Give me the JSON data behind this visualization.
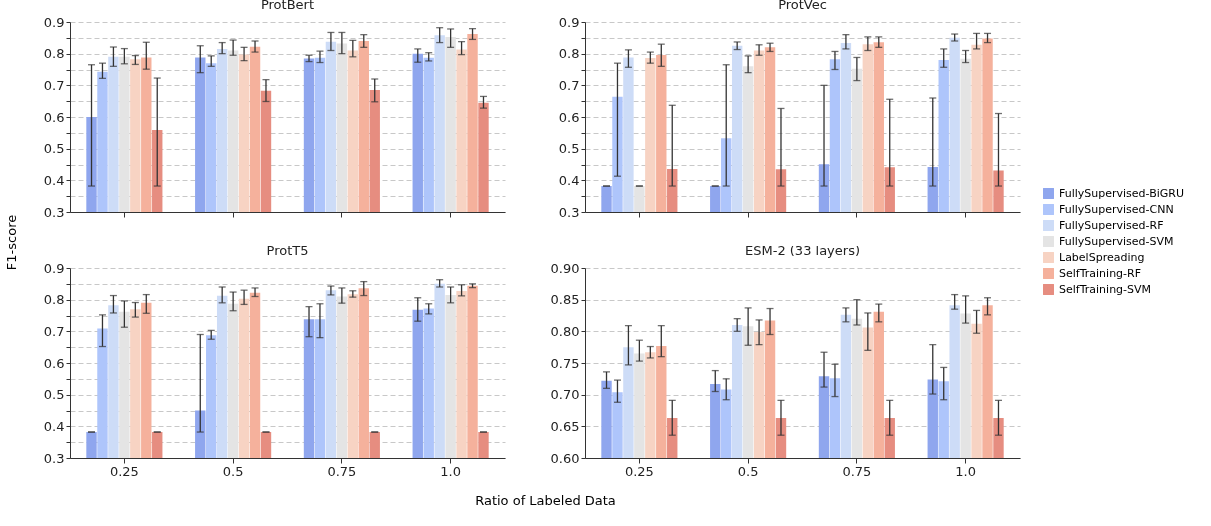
{
  "chart_data": [
    {
      "type": "bar",
      "title": "ProtBert",
      "ylabel": "F1-score",
      "categories": [
        "0.25",
        "0.5",
        "0.75",
        "1.0"
      ],
      "ylim": [
        0.3,
        0.9
      ],
      "yticks": [
        0.3,
        {
          "value": 0.35,
          "label": null
        },
        0.4,
        {
          "value": 0.45,
          "label": null
        },
        0.5,
        {
          "value": 0.55,
          "label": null
        },
        0.6,
        {
          "value": 0.65,
          "label": null
        },
        0.7,
        {
          "value": 0.75,
          "label": null
        },
        0.8,
        {
          "value": 0.85,
          "label": null
        },
        0.9
      ],
      "grid": "y",
      "tick_labels": "y",
      "series": [
        {
          "color": "#8fa6ee",
          "values": [
            0.6,
            0.788,
            0.785,
            0.8
          ],
          "errors": [
            [
              0.382,
              0.765
            ],
            [
              0.74,
              0.825
            ],
            [
              0.775,
              0.795
            ],
            [
              0.773,
              0.815
            ]
          ]
        },
        {
          "color": "#aec5fb",
          "values": [
            0.743,
            0.77,
            0.787,
            0.787
          ],
          "errors": [
            [
              0.722,
              0.77
            ],
            [
              0.76,
              0.793
            ],
            [
              0.772,
              0.808
            ],
            [
              0.777,
              0.803
            ]
          ]
        },
        {
          "color": "#cddcf7",
          "values": [
            0.79,
            0.815,
            0.838,
            0.858
          ],
          "errors": [
            [
              0.76,
              0.821
            ],
            [
              0.8,
              0.835
            ],
            [
              0.81,
              0.867
            ],
            [
              0.835,
              0.882
            ]
          ]
        },
        {
          "color": "#e4e4e4",
          "values": [
            0.79,
            0.81,
            0.832,
            0.853
          ],
          "errors": [
            [
              0.768,
              0.816
            ],
            [
              0.795,
              0.843
            ],
            [
              0.8,
              0.867
            ],
            [
              0.82,
              0.878
            ]
          ]
        },
        {
          "color": "#f7d3c3",
          "values": [
            0.782,
            0.797,
            0.81,
            0.813
          ],
          "errors": [
            [
              0.766,
              0.794
            ],
            [
              0.778,
              0.82
            ],
            [
              0.79,
              0.842
            ],
            [
              0.797,
              0.838
            ]
          ]
        },
        {
          "color": "#f5b19c",
          "values": [
            0.788,
            0.822,
            0.84,
            0.862
          ],
          "errors": [
            [
              0.751,
              0.836
            ],
            [
              0.805,
              0.84
            ],
            [
              0.82,
              0.86
            ],
            [
              0.845,
              0.879
            ]
          ]
        },
        {
          "color": "#e68d80",
          "values": [
            0.559,
            0.683,
            0.685,
            0.645
          ],
          "errors": [
            [
              0.382,
              0.723
            ],
            [
              0.649,
              0.718
            ],
            [
              0.648,
              0.72
            ],
            [
              0.628,
              0.665
            ]
          ]
        }
      ]
    },
    {
      "type": "bar",
      "title": "ProtVec",
      "categories": [
        "0.25",
        "0.5",
        "0.75",
        "1.0"
      ],
      "ylim": [
        0.3,
        0.9
      ],
      "yticks": [
        0.3,
        {
          "value": 0.35,
          "label": null
        },
        0.4,
        {
          "value": 0.45,
          "label": null
        },
        0.5,
        {
          "value": 0.55,
          "label": null
        },
        0.6,
        {
          "value": 0.65,
          "label": null
        },
        0.7,
        {
          "value": 0.75,
          "label": null
        },
        0.8,
        {
          "value": 0.85,
          "label": null
        },
        0.9
      ],
      "grid": "y",
      "legend": "right",
      "tick_labels": "y",
      "series": [
        {
          "name": "FullySupervised-BiGRU",
          "color": "#8fa6ee",
          "values": [
            0.382,
            0.382,
            0.451,
            0.442
          ],
          "errors": [
            [
              0.382,
              0.382
            ],
            [
              0.382,
              0.382
            ],
            [
              0.382,
              0.7
            ],
            [
              0.382,
              0.66
            ]
          ]
        },
        {
          "name": "FullySupervised-CNN",
          "color": "#aec5fb",
          "values": [
            0.664,
            0.533,
            0.782,
            0.78
          ],
          "errors": [
            [
              0.413,
              0.77
            ],
            [
              0.382,
              0.765
            ],
            [
              0.75,
              0.807
            ],
            [
              0.757,
              0.815
            ]
          ]
        },
        {
          "name": "FullySupervised-RF",
          "color": "#cddcf7",
          "values": [
            0.788,
            0.825,
            0.834,
            0.85
          ],
          "errors": [
            [
              0.757,
              0.812
            ],
            [
              0.813,
              0.837
            ],
            [
              0.815,
              0.86
            ],
            [
              0.84,
              0.862
            ]
          ]
        },
        {
          "name": "FullySupervised-SVM",
          "color": "#e4e4e4",
          "values": [
            0.382,
            0.76,
            0.752,
            0.784
          ],
          "errors": [
            [
              0.382,
              0.382
            ],
            [
              0.74,
              0.793
            ],
            [
              0.715,
              0.788
            ],
            [
              0.772,
              0.81
            ]
          ]
        },
        {
          "name": "LabelSpreading",
          "color": "#f7d3c3",
          "values": [
            0.786,
            0.81,
            0.83,
            0.828
          ],
          "errors": [
            [
              0.77,
              0.805
            ],
            [
              0.795,
              0.828
            ],
            [
              0.81,
              0.853
            ],
            [
              0.815,
              0.864
            ]
          ]
        },
        {
          "name": "SelfTraining-RF",
          "color": "#f5b19c",
          "values": [
            0.796,
            0.82,
            0.836,
            0.848
          ],
          "errors": [
            [
              0.76,
              0.83
            ],
            [
              0.807,
              0.833
            ],
            [
              0.82,
              0.853
            ],
            [
              0.835,
              0.864
            ]
          ]
        },
        {
          "name": "SelfTraining-SVM",
          "color": "#e68d80",
          "values": [
            0.436,
            0.435,
            0.441,
            0.431
          ],
          "errors": [
            [
              0.382,
              0.637
            ],
            [
              0.382,
              0.627
            ],
            [
              0.382,
              0.656
            ],
            [
              0.382,
              0.611
            ]
          ]
        }
      ]
    },
    {
      "type": "bar",
      "title": "ProtT5",
      "xlabel": "Ratio of Labeled Data",
      "categories": [
        "0.25",
        "0.5",
        "0.75",
        "1.0"
      ],
      "ylim": [
        0.3,
        0.9
      ],
      "yticks": [
        0.3,
        {
          "value": 0.35,
          "label": null
        },
        0.4,
        {
          "value": 0.45,
          "label": null
        },
        0.5,
        {
          "value": 0.55,
          "label": null
        },
        0.6,
        {
          "value": 0.65,
          "label": null
        },
        0.7,
        {
          "value": 0.75,
          "label": null
        },
        0.8,
        {
          "value": 0.85,
          "label": null
        },
        0.9
      ],
      "grid": "y",
      "series": [
        {
          "color": "#8fa6ee",
          "values": [
            0.382,
            0.45,
            0.738,
            0.768
          ],
          "errors": [
            [
              0.382,
              0.382
            ],
            [
              0.382,
              0.69
            ],
            [
              0.683,
              0.778
            ],
            [
              0.732,
              0.806
            ]
          ]
        },
        {
          "color": "#aec5fb",
          "values": [
            0.709,
            0.688,
            0.738,
            0.772
          ],
          "errors": [
            [
              0.652,
              0.752
            ],
            [
              0.675,
              0.703
            ],
            [
              0.68,
              0.787
            ],
            [
              0.755,
              0.787
            ]
          ]
        },
        {
          "color": "#cddcf7",
          "values": [
            0.782,
            0.812,
            0.83,
            0.85
          ],
          "errors": [
            [
              0.758,
              0.813
            ],
            [
              0.79,
              0.84
            ],
            [
              0.815,
              0.843
            ],
            [
              0.84,
              0.863
            ]
          ]
        },
        {
          "color": "#e4e4e4",
          "values": [
            0.762,
            0.787,
            0.81,
            0.815
          ],
          "errors": [
            [
              0.713,
              0.796
            ],
            [
              0.765,
              0.824
            ],
            [
              0.789,
              0.837
            ],
            [
              0.79,
              0.84
            ]
          ]
        },
        {
          "color": "#f7d3c3",
          "values": [
            0.77,
            0.803,
            0.817,
            0.827
          ],
          "errors": [
            [
              0.745,
              0.791
            ],
            [
              0.785,
              0.83
            ],
            [
              0.808,
              0.828
            ],
            [
              0.812,
              0.847
            ]
          ]
        },
        {
          "color": "#f5b19c",
          "values": [
            0.79,
            0.822,
            0.836,
            0.844
          ],
          "errors": [
            [
              0.757,
              0.816
            ],
            [
              0.81,
              0.837
            ],
            [
              0.813,
              0.857
            ],
            [
              0.838,
              0.85
            ]
          ]
        },
        {
          "color": "#e68d80",
          "values": [
            0.382,
            0.382,
            0.382,
            0.382
          ],
          "errors": [
            [
              0.382,
              0.382
            ],
            [
              0.382,
              0.382
            ],
            [
              0.382,
              0.382
            ],
            [
              0.382,
              0.382
            ]
          ]
        }
      ]
    },
    {
      "type": "bar",
      "title": "ESM-2 (33 layers)",
      "categories": [
        "0.25",
        "0.5",
        "0.75",
        "1.0"
      ],
      "ylim": [
        0.6,
        0.9
      ],
      "yticks": [
        {
          "value": 0.6,
          "label": "0.60"
        },
        0.65,
        {
          "value": 0.7,
          "label": "0.70"
        },
        0.75,
        {
          "value": 0.8,
          "label": "0.80"
        },
        0.85,
        {
          "value": 0.9,
          "label": "0.90"
        }
      ],
      "grid": "y",
      "series": [
        {
          "color": "#8fa6ee",
          "values": [
            0.722,
            0.717,
            0.729,
            0.724
          ],
          "errors": [
            [
              0.71,
              0.736
            ],
            [
              0.705,
              0.738
            ],
            [
              0.712,
              0.767
            ],
            [
              0.701,
              0.779
            ]
          ]
        },
        {
          "color": "#aec5fb",
          "values": [
            0.704,
            0.708,
            0.726,
            0.721
          ],
          "errors": [
            [
              0.688,
              0.723
            ],
            [
              0.692,
              0.725
            ],
            [
              0.697,
              0.748
            ],
            [
              0.692,
              0.743
            ]
          ]
        },
        {
          "color": "#cddcf7",
          "values": [
            0.775,
            0.81,
            0.826,
            0.841
          ],
          "errors": [
            [
              0.747,
              0.809
            ],
            [
              0.8,
              0.82
            ],
            [
              0.815,
              0.837
            ],
            [
              0.835,
              0.858
            ]
          ]
        },
        {
          "color": "#e4e4e4",
          "values": [
            0.765,
            0.808,
            0.82,
            0.828
          ],
          "errors": [
            [
              0.753,
              0.786
            ],
            [
              0.778,
              0.837
            ],
            [
              0.81,
              0.85
            ],
            [
              0.813,
              0.856
            ]
          ]
        },
        {
          "color": "#f7d3c3",
          "values": [
            0.767,
            0.799,
            0.806,
            0.812
          ],
          "errors": [
            [
              0.758,
              0.776
            ],
            [
              0.779,
              0.818
            ],
            [
              0.77,
              0.829
            ],
            [
              0.797,
              0.833
            ]
          ]
        },
        {
          "color": "#f5b19c",
          "values": [
            0.777,
            0.817,
            0.831,
            0.841
          ],
          "errors": [
            [
              0.76,
              0.809
            ],
            [
              0.795,
              0.836
            ],
            [
              0.815,
              0.843
            ],
            [
              0.826,
              0.853
            ]
          ]
        },
        {
          "color": "#e68d80",
          "values": [
            0.663,
            0.663,
            0.663,
            0.663
          ],
          "errors": [
            [
              0.636,
              0.691
            ],
            [
              0.636,
              0.691
            ],
            [
              0.636,
              0.691
            ],
            [
              0.636,
              0.691
            ]
          ]
        }
      ]
    }
  ]
}
